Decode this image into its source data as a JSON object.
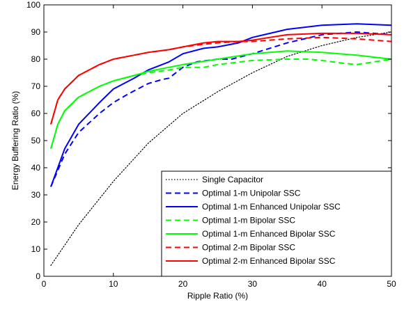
{
  "chart_data": {
    "type": "line",
    "title": "",
    "xlabel": "Ripple Ratio (%)",
    "ylabel": "Energy Buffering Ratio (%)",
    "xlim": [
      0,
      50
    ],
    "ylim": [
      0,
      100
    ],
    "xticks": [
      0,
      10,
      20,
      30,
      40,
      50
    ],
    "yticks": [
      0,
      10,
      20,
      30,
      40,
      50,
      60,
      70,
      80,
      90,
      100
    ],
    "grid": false,
    "legend_position": "bottom-right",
    "series": [
      {
        "name": "Single Capacitor",
        "color": "#000000",
        "dash": "dotted",
        "x": [
          1,
          5,
          10,
          15,
          20,
          25,
          30,
          35,
          40,
          45,
          50
        ],
        "y": [
          4,
          19,
          35,
          49,
          60,
          68,
          75,
          81,
          85,
          88,
          90
        ]
      },
      {
        "name": "Optimal 1-m Unipolar SSC",
        "color": "#0000ff",
        "dash": "dashed",
        "x": [
          1,
          2,
          3,
          5,
          8,
          10,
          12,
          15,
          17,
          18,
          20,
          22,
          25,
          27,
          30,
          35,
          40,
          45,
          50
        ],
        "y": [
          33,
          39,
          45,
          53,
          60,
          64,
          67,
          71,
          72.5,
          73,
          77,
          79,
          80,
          80,
          82,
          86,
          89,
          90,
          89
        ]
      },
      {
        "name": "Optimal 1-m Enhanced Unipolar SSC",
        "color": "#0000ff",
        "dash": "solid",
        "x": [
          1,
          2,
          3,
          5,
          8,
          10,
          13,
          15,
          18,
          20,
          23,
          25,
          28,
          30,
          35,
          40,
          45,
          50
        ],
        "y": [
          33,
          40,
          47,
          56,
          64,
          69,
          73,
          76,
          79,
          82,
          84,
          84.5,
          86,
          88,
          91,
          92.5,
          93,
          92.5
        ]
      },
      {
        "name": "Optimal 1-m Bipolar SSC",
        "color": "#00ff00",
        "dash": "dashed",
        "x": [
          1,
          2,
          3,
          5,
          8,
          10,
          13,
          15,
          18,
          20,
          23,
          25,
          30,
          35,
          38,
          40,
          43,
          45,
          50
        ],
        "y": [
          47,
          56,
          61,
          66,
          70,
          72,
          74,
          75,
          76,
          77,
          77,
          78,
          79.5,
          80,
          80,
          79.5,
          78.5,
          78,
          80
        ]
      },
      {
        "name": "Optimal 1-m Enhanced Bipolar SSC",
        "color": "#00ff00",
        "dash": "solid",
        "x": [
          1,
          2,
          3,
          5,
          8,
          10,
          13,
          15,
          18,
          20,
          25,
          30,
          35,
          40,
          45,
          50
        ],
        "y": [
          47,
          56,
          61,
          66,
          70,
          72,
          74,
          75.5,
          77,
          78,
          80,
          82,
          83,
          82.5,
          81.5,
          80
        ]
      },
      {
        "name": "Optimal 2-m Bipolar SSC",
        "color": "#ff0000",
        "dash": "dashed",
        "x": [
          1,
          2,
          3,
          5,
          8,
          10,
          13,
          15,
          18,
          20,
          23,
          25,
          28,
          30,
          35,
          40,
          45,
          50
        ],
        "y": [
          56,
          65,
          69,
          74,
          78,
          80,
          81.5,
          82.5,
          83.5,
          84.5,
          85.5,
          86,
          86.5,
          86.5,
          87.5,
          88,
          87.5,
          86.5
        ]
      },
      {
        "name": "Optimal 2-m Enhanced Bipolar SSC",
        "color": "#ff0000",
        "dash": "solid",
        "x": [
          1,
          2,
          3,
          5,
          8,
          10,
          13,
          15,
          18,
          20,
          23,
          25,
          28,
          30,
          35,
          40,
          45,
          50
        ],
        "y": [
          56,
          65,
          69,
          74,
          78,
          80,
          81.5,
          82.5,
          83.5,
          84.5,
          86,
          86.5,
          86.5,
          87,
          89,
          89.5,
          89.5,
          89
        ]
      }
    ]
  }
}
